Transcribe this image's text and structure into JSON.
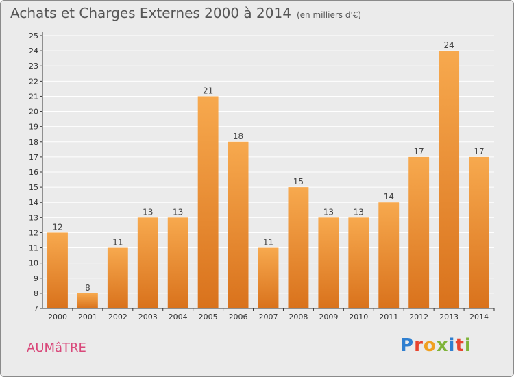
{
  "chart_data": {
    "type": "bar",
    "title": "Achats et Charges Externes 2000 à 2014",
    "subtitle": "(en milliers d'€)",
    "categories": [
      "2000",
      "2001",
      "2002",
      "2003",
      "2004",
      "2005",
      "2006",
      "2007",
      "2008",
      "2009",
      "2010",
      "2011",
      "2012",
      "2013",
      "2014"
    ],
    "values": [
      12,
      8,
      11,
      13,
      13,
      21,
      18,
      11,
      15,
      13,
      13,
      14,
      17,
      24,
      17
    ],
    "ylim": [
      7,
      25
    ],
    "yticks": [
      7,
      8,
      9,
      10,
      11,
      12,
      13,
      14,
      15,
      16,
      17,
      18,
      19,
      20,
      21,
      22,
      23,
      24,
      25
    ],
    "grid": true,
    "colors": {
      "bar_light": "#f7a94e",
      "bar_dark": "#d9721c",
      "grid": "#ffffff",
      "axis": "#333333"
    }
  },
  "footer": {
    "commune": "AUMâTRE",
    "logo": [
      "P",
      "r",
      "o",
      "x",
      "i",
      "t",
      "i"
    ],
    "logo_colors": [
      "#2f7fd0",
      "#e7442f",
      "#f0a020",
      "#7fb43a",
      "#2f7fd0",
      "#e7442f",
      "#7fb43a"
    ]
  }
}
